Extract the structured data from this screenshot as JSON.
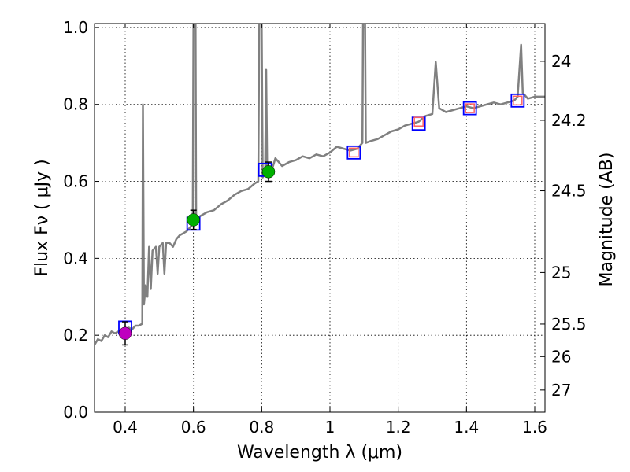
{
  "chart_data": {
    "type": "line",
    "xlabel": "Wavelength  λ (μm)",
    "ylabel": "Flux  Fν  ( μJy )",
    "ylabel_right": "Magnitude (AB)",
    "xlim": [
      0.31,
      1.63
    ],
    "ylim": [
      0.0,
      1.01
    ],
    "grid": true,
    "x_ticks": [
      {
        "value": 0.4,
        "label": "0.4"
      },
      {
        "value": 0.6,
        "label": "0.6"
      },
      {
        "value": 0.8,
        "label": "0.8"
      },
      {
        "value": 1.0,
        "label": "1"
      },
      {
        "value": 1.2,
        "label": "1.2"
      },
      {
        "value": 1.4,
        "label": "1.4"
      },
      {
        "value": 1.6,
        "label": "1.6"
      }
    ],
    "y_ticks": [
      {
        "value": 0.0,
        "label": "0.0"
      },
      {
        "value": 0.2,
        "label": "0.2"
      },
      {
        "value": 0.4,
        "label": "0.4"
      },
      {
        "value": 0.6,
        "label": "0.6"
      },
      {
        "value": 0.8,
        "label": "0.8"
      },
      {
        "value": 1.0,
        "label": "1.0"
      }
    ],
    "y2_ticks": [
      {
        "value": 24,
        "label": "24"
      },
      {
        "value": 24.2,
        "label": "24.2"
      },
      {
        "value": 24.5,
        "label": "24.5"
      },
      {
        "value": 25,
        "label": "25"
      },
      {
        "value": 25.5,
        "label": "25.5"
      },
      {
        "value": 26,
        "label": "26"
      },
      {
        "value": 27,
        "label": "27"
      }
    ],
    "spectrum": {
      "color": "#808080",
      "points": [
        [
          0.31,
          0.175
        ],
        [
          0.32,
          0.19
        ],
        [
          0.33,
          0.185
        ],
        [
          0.34,
          0.2
        ],
        [
          0.35,
          0.195
        ],
        [
          0.36,
          0.21
        ],
        [
          0.37,
          0.205
        ],
        [
          0.38,
          0.21
        ],
        [
          0.39,
          0.205
        ],
        [
          0.4,
          0.215
        ],
        [
          0.41,
          0.22
        ],
        [
          0.42,
          0.215
        ],
        [
          0.43,
          0.225
        ],
        [
          0.44,
          0.225
        ],
        [
          0.45,
          0.23
        ],
        [
          0.452,
          0.8
        ],
        [
          0.455,
          0.28
        ],
        [
          0.46,
          0.33
        ],
        [
          0.465,
          0.3
        ],
        [
          0.47,
          0.43
        ],
        [
          0.475,
          0.32
        ],
        [
          0.48,
          0.42
        ],
        [
          0.49,
          0.43
        ],
        [
          0.495,
          0.36
        ],
        [
          0.5,
          0.43
        ],
        [
          0.51,
          0.44
        ],
        [
          0.515,
          0.36
        ],
        [
          0.52,
          0.44
        ],
        [
          0.53,
          0.44
        ],
        [
          0.54,
          0.43
        ],
        [
          0.55,
          0.45
        ],
        [
          0.56,
          0.46
        ],
        [
          0.57,
          0.465
        ],
        [
          0.58,
          0.47
        ],
        [
          0.59,
          0.48
        ],
        [
          0.598,
          0.49
        ],
        [
          0.6,
          1.01
        ],
        [
          0.606,
          1.01
        ],
        [
          0.608,
          0.5
        ],
        [
          0.62,
          0.51
        ],
        [
          0.64,
          0.52
        ],
        [
          0.66,
          0.525
        ],
        [
          0.68,
          0.54
        ],
        [
          0.7,
          0.55
        ],
        [
          0.72,
          0.565
        ],
        [
          0.74,
          0.575
        ],
        [
          0.76,
          0.58
        ],
        [
          0.78,
          0.595
        ],
        [
          0.79,
          0.6
        ],
        [
          0.793,
          1.01
        ],
        [
          0.8,
          1.01
        ],
        [
          0.803,
          0.61
        ],
        [
          0.81,
          0.62
        ],
        [
          0.813,
          0.89
        ],
        [
          0.816,
          0.63
        ],
        [
          0.83,
          0.63
        ],
        [
          0.84,
          0.66
        ],
        [
          0.86,
          0.64
        ],
        [
          0.88,
          0.65
        ],
        [
          0.9,
          0.655
        ],
        [
          0.92,
          0.665
        ],
        [
          0.94,
          0.66
        ],
        [
          0.96,
          0.67
        ],
        [
          0.98,
          0.665
        ],
        [
          1.0,
          0.675
        ],
        [
          1.02,
          0.69
        ],
        [
          1.04,
          0.685
        ],
        [
          1.06,
          0.68
        ],
        [
          1.08,
          0.685
        ],
        [
          1.095,
          0.7
        ],
        [
          1.097,
          1.01
        ],
        [
          1.103,
          1.01
        ],
        [
          1.105,
          0.7
        ],
        [
          1.12,
          0.705
        ],
        [
          1.14,
          0.71
        ],
        [
          1.16,
          0.72
        ],
        [
          1.18,
          0.73
        ],
        [
          1.2,
          0.735
        ],
        [
          1.22,
          0.745
        ],
        [
          1.24,
          0.75
        ],
        [
          1.26,
          0.755
        ],
        [
          1.28,
          0.77
        ],
        [
          1.3,
          0.775
        ],
        [
          1.31,
          0.91
        ],
        [
          1.32,
          0.79
        ],
        [
          1.34,
          0.78
        ],
        [
          1.36,
          0.785
        ],
        [
          1.38,
          0.79
        ],
        [
          1.4,
          0.795
        ],
        [
          1.42,
          0.79
        ],
        [
          1.44,
          0.795
        ],
        [
          1.46,
          0.8
        ],
        [
          1.48,
          0.805
        ],
        [
          1.5,
          0.8
        ],
        [
          1.52,
          0.805
        ],
        [
          1.54,
          0.81
        ],
        [
          1.55,
          0.82
        ],
        [
          1.56,
          0.955
        ],
        [
          1.565,
          0.83
        ],
        [
          1.58,
          0.815
        ],
        [
          1.6,
          0.82
        ],
        [
          1.63,
          0.82
        ]
      ]
    },
    "model_points": [
      {
        "x": 0.4,
        "y": 0.22,
        "color": "#0000ff"
      },
      {
        "x": 0.6,
        "y": 0.49,
        "color": "#0000ff"
      },
      {
        "x": 0.81,
        "y": 0.63,
        "color": "#0000ff"
      },
      {
        "x": 1.07,
        "y": 0.675,
        "color": "#0000ff"
      },
      {
        "x": 1.26,
        "y": 0.75,
        "color": "#0000ff"
      },
      {
        "x": 1.41,
        "y": 0.79,
        "color": "#0000ff"
      },
      {
        "x": 1.55,
        "y": 0.81,
        "color": "#0000ff"
      }
    ],
    "observed_points": [
      {
        "x": 0.4,
        "y": 0.205,
        "err": 0.03,
        "color": "#bf00bf"
      },
      {
        "x": 0.6,
        "y": 0.5,
        "err": 0.025,
        "color": "#00b000"
      },
      {
        "x": 0.82,
        "y": 0.625,
        "err": 0.025,
        "color": "#00b000"
      }
    ],
    "nir_points": [
      {
        "x": 1.07,
        "y": 0.675,
        "color": "#ff6060"
      },
      {
        "x": 1.26,
        "y": 0.755,
        "color": "#ff6060"
      },
      {
        "x": 1.41,
        "y": 0.79,
        "color": "#ff6060"
      },
      {
        "x": 1.55,
        "y": 0.81,
        "color": "#ff6060"
      }
    ]
  }
}
